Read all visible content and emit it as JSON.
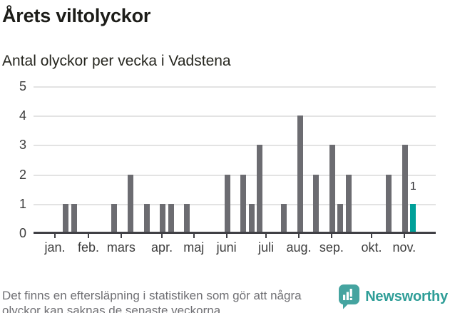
{
  "colors": {
    "bar": "#6C6C71",
    "accent": "#00A099",
    "grid": "#E3E3E3",
    "axis": "#404045",
    "logo_bg": "#45A4A0",
    "logo_text": "#2F9E98"
  },
  "footer": {
    "note": "Det finns en eftersläpning i statistiken som gör att några olyckor kan saknas de senaste veckorna.",
    "brand": "Newsworthy"
  },
  "chart_data": {
    "type": "bar",
    "title": "Årets viltolyckor",
    "subtitle": "Antal olyckor per vecka i Vadstena",
    "x_unit": "week",
    "week_axis_max": 49.8,
    "ylim": [
      0,
      5
    ],
    "yticks": [
      0,
      1,
      2,
      3,
      4,
      5
    ],
    "grid": true,
    "legend": "none",
    "months": [
      {
        "label": "jan.",
        "week": 2.65
      },
      {
        "label": "feb.",
        "week": 6.8
      },
      {
        "label": "mars",
        "week": 10.85
      },
      {
        "label": "apr.",
        "week": 15.9
      },
      {
        "label": "maj",
        "week": 19.85
      },
      {
        "label": "juni",
        "week": 23.9
      },
      {
        "label": "juli",
        "week": 28.8
      },
      {
        "label": "aug.",
        "week": 32.85
      },
      {
        "label": "sep.",
        "week": 36.9
      },
      {
        "label": "okt.",
        "week": 41.85
      },
      {
        "label": "nov.",
        "week": 45.9
      }
    ],
    "bars": [
      {
        "week": 4,
        "value": 1
      },
      {
        "week": 5,
        "value": 1
      },
      {
        "week": 10,
        "value": 1
      },
      {
        "week": 12,
        "value": 2
      },
      {
        "week": 14,
        "value": 1
      },
      {
        "week": 16,
        "value": 1
      },
      {
        "week": 17,
        "value": 1
      },
      {
        "week": 19,
        "value": 1
      },
      {
        "week": 24,
        "value": 2
      },
      {
        "week": 26,
        "value": 2
      },
      {
        "week": 27,
        "value": 1
      },
      {
        "week": 28,
        "value": 3
      },
      {
        "week": 31,
        "value": 1
      },
      {
        "week": 33,
        "value": 4
      },
      {
        "week": 35,
        "value": 2
      },
      {
        "week": 37,
        "value": 3
      },
      {
        "week": 38,
        "value": 1
      },
      {
        "week": 39,
        "value": 2
      },
      {
        "week": 44,
        "value": 2
      },
      {
        "week": 46,
        "value": 3
      },
      {
        "week": 47,
        "value": 1,
        "highlight": true,
        "label": "1"
      }
    ]
  }
}
